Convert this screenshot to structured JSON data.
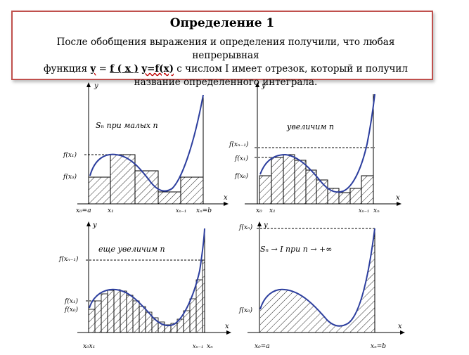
{
  "definition": {
    "title": "Определение  1",
    "line1": "После обобщения выражения и определения получили, что любая непрерывная",
    "line2_prefix": "функция",
    "fn_y": "y",
    "fn_eq": " = ",
    "fn_fx": "f ( x )",
    "fn_sp": " ",
    "fn_yfx": "y=f(x)",
    "line2_suffix": " с числом I имеет отрезок, который и получил",
    "line3": "название определенного интеграла."
  },
  "panels": {
    "p1": {
      "axis_y": "y",
      "axis_x": "x",
      "annotation": "Sₙ   при   малых   n",
      "f_x1": "f(x₁)",
      "f_x0": "f(x₀)",
      "x0": "x₀=a",
      "x1": "x₁",
      "xn1": "xₙ₋₁",
      "xn": "xₙ=b"
    },
    "p2": {
      "axis_y": "y",
      "axis_x": "x",
      "annotation": "увеличим   n",
      "f_xn1": "f(xₙ₋₁)",
      "f_x1": "f(x₁)",
      "f_x0": "f(x₀)",
      "x0": "x₀",
      "x1": "x₁",
      "xn1": "xₙ₋₁",
      "xn": "xₙ"
    },
    "p3": {
      "axis_y": "y",
      "axis_x": "x",
      "annotation": "еще   увеличим   n",
      "f_xn1": "f(xₙ₋₁)",
      "f_x1": "f(x₁)",
      "f_x0": "f(x₀)",
      "x0": "x₀x₁",
      "xn1": "xₙ₋₁",
      "xn": "xₙ"
    },
    "p4": {
      "axis_y": "y",
      "axis_x": "x",
      "annotation": "Sₙ → I   при   n → +∞",
      "f_xn": "f(xₙ)",
      "f_x0": "f(x₀)",
      "x0": "x₀=a",
      "xn": "xₙ=b"
    }
  }
}
